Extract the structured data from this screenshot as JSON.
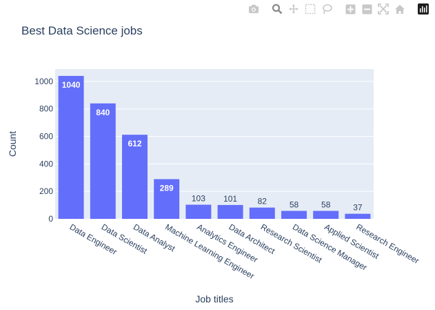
{
  "modebar": {
    "buttons": [
      {
        "name": "camera-icon"
      },
      {
        "name": "zoom-icon"
      },
      {
        "name": "pan-icon"
      },
      {
        "name": "box-select-icon"
      },
      {
        "name": "lasso-select-icon"
      },
      {
        "name": "zoom-in-icon"
      },
      {
        "name": "zoom-out-icon"
      },
      {
        "name": "autoscale-icon"
      },
      {
        "name": "reset-axes-icon"
      },
      {
        "name": "plotly-logo-icon"
      }
    ]
  },
  "chart_data": {
    "type": "bar",
    "title": "Best Data Science jobs",
    "xlabel": "Job titles",
    "ylabel": "Count",
    "categories": [
      "Data Engineer",
      "Data Scientist",
      "Data Analyst",
      "Machine Learning Engineer",
      "Analytics Engineer",
      "Data Architect",
      "Research Scientist",
      "Data Science Manager",
      "Applied Scientist",
      "Research Engineer"
    ],
    "values": [
      1040,
      840,
      612,
      289,
      103,
      101,
      82,
      58,
      58,
      37
    ],
    "ylim": [
      0,
      1090
    ],
    "yticks": [
      0,
      200,
      400,
      600,
      800,
      1000
    ],
    "grid": true,
    "colors": {
      "bar": "#636efa",
      "plot_bg": "#e5ecf6",
      "text": "#2a3f5f",
      "grid": "#ffffff",
      "modebar": "#c8c8c8",
      "modebar_active": "#8a8a8a"
    }
  }
}
